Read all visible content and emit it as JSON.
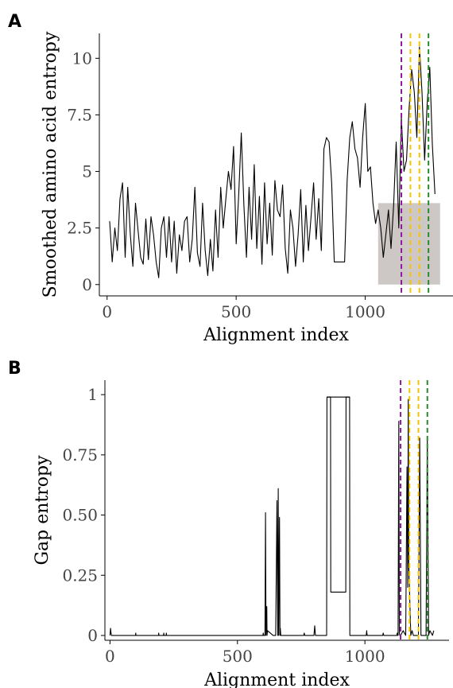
{
  "chart_data": [
    {
      "panel": "A",
      "type": "line",
      "xlabel": "Alignment index",
      "ylabel": "Smoothed amino acid entropy",
      "xlim": [
        -30,
        1340
      ],
      "ylim": [
        -0.5,
        11.1
      ],
      "xticks": [
        0,
        500,
        1000
      ],
      "xtick_labels": [
        "0",
        "500",
        "1000"
      ],
      "yticks": [
        0,
        2.5,
        5,
        7.5,
        10
      ],
      "ytick_labels": [
        "0",
        "2.5",
        "5",
        "7.5",
        "10"
      ],
      "grid": false,
      "shaded_region": {
        "x": [
          1050,
          1290
        ],
        "y": [
          0,
          3.6
        ],
        "color": "#cdc8c6"
      },
      "vlines": [
        {
          "x": 1140,
          "color": "#8b1a9b"
        },
        {
          "x": 1175,
          "color": "#f2c500"
        },
        {
          "x": 1210,
          "color": "#f2c500"
        },
        {
          "x": 1245,
          "color": "#2a8a2a"
        }
      ],
      "series": [
        {
          "color": "#000000",
          "x": [
            10,
            20,
            30,
            40,
            50,
            60,
            70,
            80,
            90,
            100,
            110,
            120,
            130,
            140,
            150,
            160,
            170,
            180,
            190,
            200,
            210,
            220,
            230,
            240,
            250,
            260,
            270,
            280,
            290,
            300,
            310,
            320,
            330,
            340,
            350,
            360,
            370,
            380,
            390,
            400,
            410,
            420,
            430,
            440,
            450,
            460,
            470,
            480,
            490,
            500,
            510,
            520,
            530,
            540,
            550,
            560,
            570,
            580,
            590,
            600,
            610,
            620,
            630,
            640,
            650,
            660,
            670,
            680,
            690,
            700,
            710,
            720,
            730,
            740,
            750,
            760,
            770,
            780,
            790,
            800,
            810,
            820,
            830,
            840,
            850,
            860,
            870,
            880,
            890,
            900,
            910,
            920,
            930,
            940,
            950,
            960,
            970,
            980,
            990,
            1000,
            1010,
            1020,
            1030,
            1040,
            1050,
            1060,
            1070,
            1080,
            1090,
            1100,
            1110,
            1120,
            1130,
            1140,
            1150,
            1160,
            1170,
            1180,
            1190,
            1200,
            1210,
            1220,
            1230,
            1240,
            1250,
            1260,
            1270
          ],
          "y": [
            2.8,
            1.0,
            2.5,
            1.5,
            3.8,
            4.5,
            1.2,
            4.3,
            2.2,
            0.8,
            3.6,
            2.4,
            1.2,
            0.9,
            2.9,
            1.1,
            3.0,
            2.2,
            1.0,
            0.3,
            2.5,
            3.0,
            1.2,
            3.0,
            1.0,
            2.8,
            0.5,
            2.2,
            1.5,
            2.8,
            3.0,
            1.0,
            2.0,
            4.3,
            1.4,
            0.8,
            3.6,
            1.5,
            0.4,
            2.0,
            0.6,
            3.3,
            1.2,
            4.3,
            2.5,
            3.8,
            5.0,
            4.2,
            6.1,
            1.8,
            4.0,
            6.7,
            3.5,
            1.2,
            4.3,
            2.0,
            5.3,
            1.6,
            3.9,
            0.9,
            4.5,
            1.8,
            3.6,
            1.3,
            4.6,
            3.3,
            3.0,
            4.4,
            1.6,
            0.5,
            3.3,
            2.5,
            0.8,
            2.2,
            4.2,
            1.0,
            3.5,
            1.5,
            3.0,
            4.5,
            2.0,
            3.8,
            1.5,
            6.0,
            6.5,
            6.3,
            4.5,
            1.0,
            1.0,
            1.0,
            1.0,
            1.0,
            4.6,
            6.5,
            7.2,
            6.0,
            5.6,
            4.3,
            6.5,
            8.0,
            5.0,
            5.2,
            3.6,
            2.7,
            3.3,
            2.5,
            1.2,
            2.2,
            3.3,
            1.6,
            3.5,
            6.3,
            2.5,
            7.4,
            5.0,
            5.5,
            7.8,
            9.5,
            8.5,
            6.5,
            10.5,
            8.5,
            5.5,
            8.0,
            9.6,
            6.2,
            4.0
          ]
        }
      ]
    },
    {
      "panel": "B",
      "type": "line",
      "xlabel": "Alignment index",
      "ylabel": "Gap entropy",
      "xlim": [
        -20,
        1330
      ],
      "ylim": [
        -0.02,
        1.06
      ],
      "xticks": [
        0,
        500,
        1000
      ],
      "xtick_labels": [
        "0",
        "500",
        "1000"
      ],
      "yticks": [
        0,
        0.25,
        0.5,
        0.75,
        1
      ],
      "ytick_labels": [
        "0",
        "0.25",
        "0.50",
        "0.75",
        "1"
      ],
      "grid": false,
      "vlines": [
        {
          "x": 1140,
          "color": "#8b1a9b"
        },
        {
          "x": 1175,
          "color": "#f2c500"
        },
        {
          "x": 1210,
          "color": "#f2c500"
        },
        {
          "x": 1245,
          "color": "#2a8a2a"
        }
      ],
      "series": [
        {
          "color": "#000000",
          "x": [
            0,
            2,
            4,
            6,
            100,
            101,
            102,
            190,
            191,
            192,
            210,
            211,
            212,
            220,
            221,
            222,
            600,
            601,
            603,
            608,
            610,
            612,
            615,
            616,
            618,
            640,
            650,
            655,
            658,
            660,
            662,
            665,
            667,
            668,
            670,
            680,
            760,
            762,
            764,
            800,
            803,
            806,
            850,
            851,
            940,
            941,
            1005,
            1007,
            1009,
            1070,
            1072,
            1074,
            1125,
            1127,
            1129,
            1130,
            1133,
            1135,
            1137,
            1140,
            1150,
            1160,
            1165,
            1168,
            1170,
            1172,
            1180,
            1185,
            1190,
            1210,
            1215,
            1220,
            1240,
            1245,
            1250,
            1255,
            1265,
            1270
          ],
          "y": [
            0,
            0.03,
            0.01,
            0,
            0,
            0.01,
            0,
            0,
            0.01,
            0,
            0,
            0.01,
            0,
            0,
            0.01,
            0,
            0,
            0.01,
            0,
            0,
            0.51,
            0,
            0.12,
            0,
            0.02,
            0,
            0,
            0.56,
            0,
            0.61,
            0,
            0.49,
            0,
            0.03,
            0,
            0,
            0,
            0.01,
            0,
            0,
            0.04,
            0,
            0,
            0.99,
            0.99,
            0,
            0,
            0.02,
            0,
            0,
            0.01,
            0,
            0,
            0.01,
            0,
            0,
            0.89,
            0.01,
            0,
            0,
            0.02,
            0,
            0.7,
            0.2,
            0.98,
            0.3,
            0,
            0.02,
            0,
            0,
            0.82,
            0,
            0,
            0.82,
            0,
            0.02,
            0,
            0.02
          ]
        },
        {
          "color": "#000000",
          "x": [
            851,
            865,
            866,
            925,
            926,
            940
          ],
          "y": [
            0.99,
            0.99,
            0.18,
            0.18,
            0.99,
            0.99
          ]
        }
      ]
    }
  ]
}
